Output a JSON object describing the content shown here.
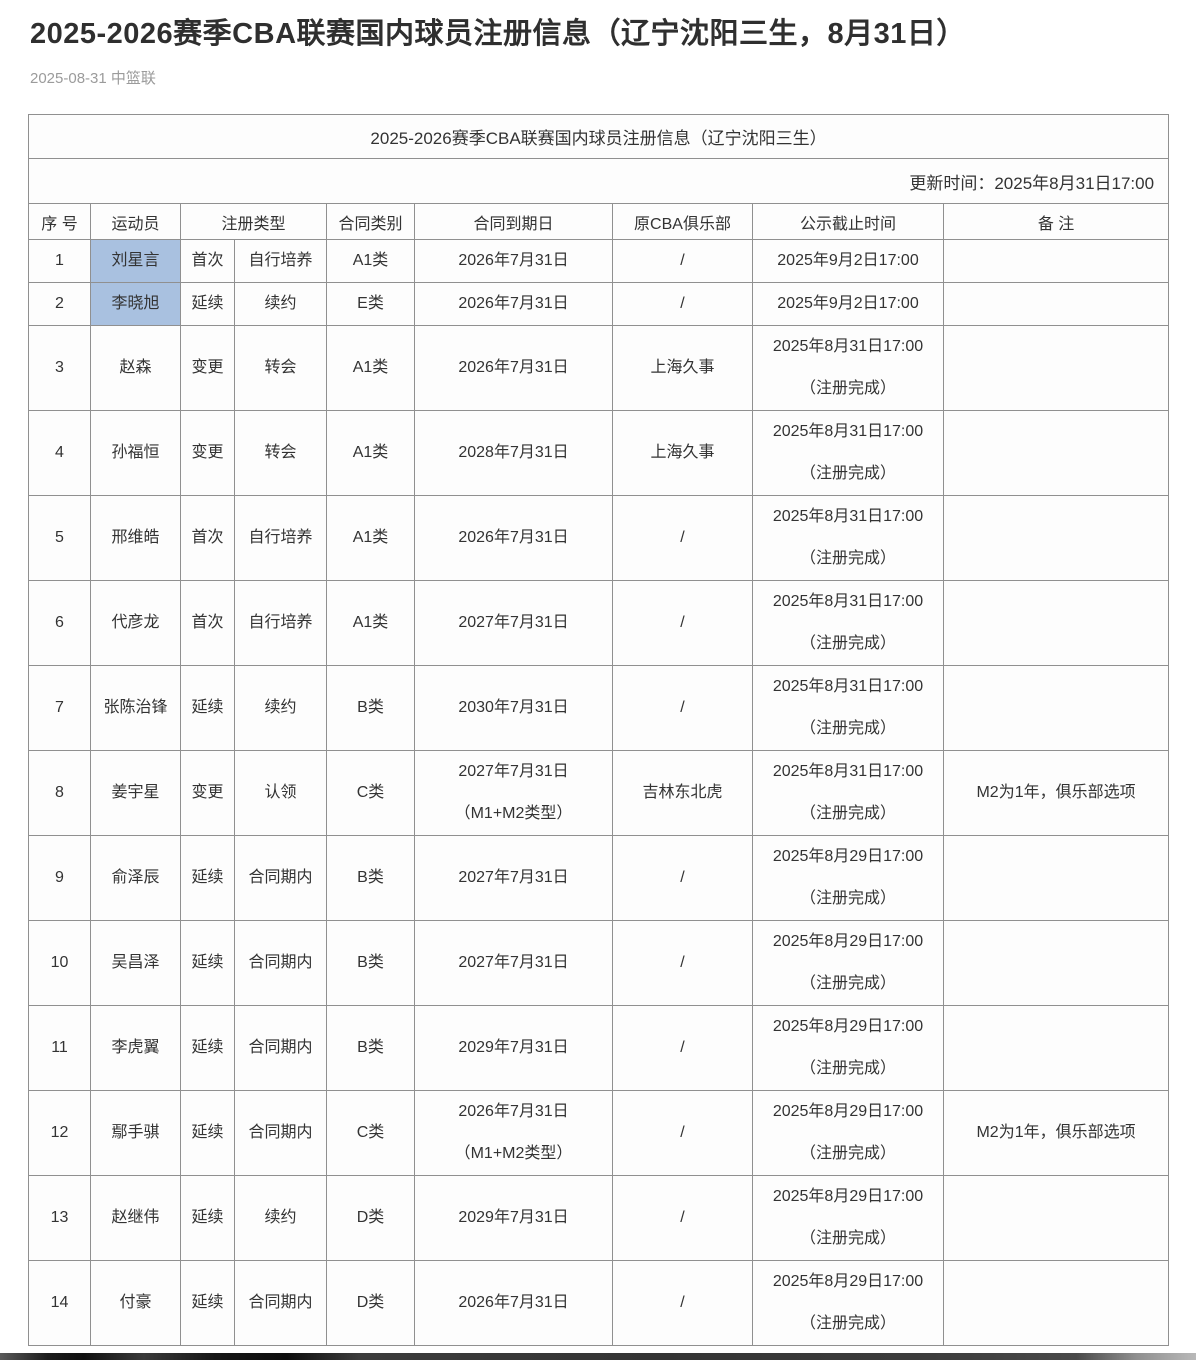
{
  "page": {
    "title": "2025-2026赛季CBA联赛国内球员注册信息（辽宁沈阳三生，8月31日）",
    "meta": "2025-08-31 中篮联"
  },
  "theme": {
    "highlight_color": "#a9c1e0",
    "border_color": "#909090",
    "meta_text_color": "#9b9b9b"
  },
  "table": {
    "caption": "2025-2026赛季CBA联赛国内球员注册信息（辽宁沈阳三生）",
    "update_time": "更新时间：2025年8月31日17:00",
    "headers": [
      "序 号",
      "运动员",
      "注册类型",
      "合同类别",
      "合同到期日",
      "原CBA俱乐部",
      "公示截止时间",
      "备 注"
    ],
    "rows": [
      {
        "no": "1",
        "player": "刘星言",
        "reg_type": "首次",
        "reg_subtype": "自行培养",
        "contract_class": "A1类",
        "contract_expiry": "2026年7月31日",
        "former_club": "/",
        "deadline": "2025年9月2日17:00",
        "remark": "",
        "highlighted": true
      },
      {
        "no": "2",
        "player": "李晓旭",
        "reg_type": "延续",
        "reg_subtype": "续约",
        "contract_class": "E类",
        "contract_expiry": "2026年7月31日",
        "former_club": "/",
        "deadline": "2025年9月2日17:00",
        "remark": "",
        "highlighted": true
      },
      {
        "no": "3",
        "player": "赵森",
        "reg_type": "变更",
        "reg_subtype": "转会",
        "contract_class": "A1类",
        "contract_expiry": "2026年7月31日",
        "former_club": "上海久事",
        "deadline": "2025年8月31日17:00\n（注册完成）",
        "remark": "",
        "highlighted": false
      },
      {
        "no": "4",
        "player": "孙福恒",
        "reg_type": "变更",
        "reg_subtype": "转会",
        "contract_class": "A1类",
        "contract_expiry": "2028年7月31日",
        "former_club": "上海久事",
        "deadline": "2025年8月31日17:00\n（注册完成）",
        "remark": "",
        "highlighted": false
      },
      {
        "no": "5",
        "player": "邢维皓",
        "reg_type": "首次",
        "reg_subtype": "自行培养",
        "contract_class": "A1类",
        "contract_expiry": "2026年7月31日",
        "former_club": "/",
        "deadline": "2025年8月31日17:00\n（注册完成）",
        "remark": "",
        "highlighted": false
      },
      {
        "no": "6",
        "player": "代彦龙",
        "reg_type": "首次",
        "reg_subtype": "自行培养",
        "contract_class": "A1类",
        "contract_expiry": "2027年7月31日",
        "former_club": "/",
        "deadline": "2025年8月31日17:00\n（注册完成）",
        "remark": "",
        "highlighted": false
      },
      {
        "no": "7",
        "player": "张陈治锋",
        "reg_type": "延续",
        "reg_subtype": "续约",
        "contract_class": "B类",
        "contract_expiry": "2030年7月31日",
        "former_club": "/",
        "deadline": "2025年8月31日17:00\n（注册完成）",
        "remark": "",
        "highlighted": false
      },
      {
        "no": "8",
        "player": "姜宇星",
        "reg_type": "变更",
        "reg_subtype": "认领",
        "contract_class": "C类",
        "contract_expiry": "2027年7月31日\n（M1+M2类型）",
        "former_club": "吉林东北虎",
        "deadline": "2025年8月31日17:00\n（注册完成）",
        "remark": "M2为1年，俱乐部选项",
        "highlighted": false
      },
      {
        "no": "9",
        "player": "俞泽辰",
        "reg_type": "延续",
        "reg_subtype": "合同期内",
        "contract_class": "B类",
        "contract_expiry": "2027年7月31日",
        "former_club": "/",
        "deadline": "2025年8月29日17:00\n（注册完成）",
        "remark": "",
        "highlighted": false
      },
      {
        "no": "10",
        "player": "吴昌泽",
        "reg_type": "延续",
        "reg_subtype": "合同期内",
        "contract_class": "B类",
        "contract_expiry": "2027年7月31日",
        "former_club": "/",
        "deadline": "2025年8月29日17:00\n（注册完成）",
        "remark": "",
        "highlighted": false
      },
      {
        "no": "11",
        "player": "李虎翼",
        "reg_type": "延续",
        "reg_subtype": "合同期内",
        "contract_class": "B类",
        "contract_expiry": "2029年7月31日",
        "former_club": "/",
        "deadline": "2025年8月29日17:00\n（注册完成）",
        "remark": "",
        "highlighted": false
      },
      {
        "no": "12",
        "player": "鄢手骐",
        "reg_type": "延续",
        "reg_subtype": "合同期内",
        "contract_class": "C类",
        "contract_expiry": "2026年7月31日\n（M1+M2类型）",
        "former_club": "/",
        "deadline": "2025年8月29日17:00\n（注册完成）",
        "remark": "M2为1年，俱乐部选项",
        "highlighted": false
      },
      {
        "no": "13",
        "player": "赵继伟",
        "reg_type": "延续",
        "reg_subtype": "续约",
        "contract_class": "D类",
        "contract_expiry": "2029年7月31日",
        "former_club": "/",
        "deadline": "2025年8月29日17:00\n（注册完成）",
        "remark": "",
        "highlighted": false
      },
      {
        "no": "14",
        "player": "付豪",
        "reg_type": "延续",
        "reg_subtype": "合同期内",
        "contract_class": "D类",
        "contract_expiry": "2026年7月31日",
        "former_club": "/",
        "deadline": "2025年8月29日17:00\n（注册完成）",
        "remark": "",
        "highlighted": false
      }
    ]
  }
}
